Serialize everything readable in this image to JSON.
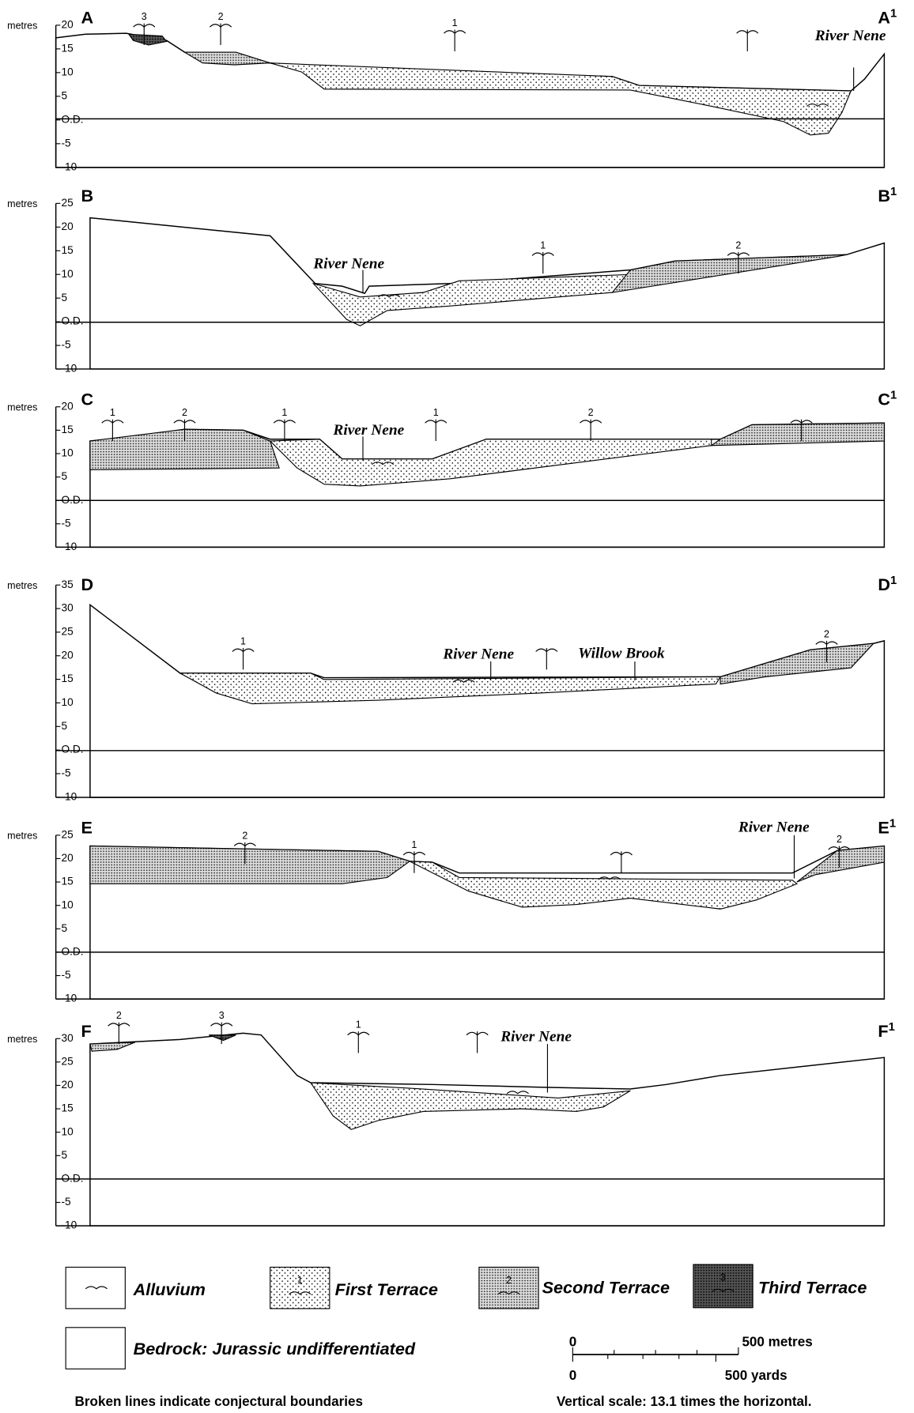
{
  "sections": [
    {
      "left": "A",
      "right": "A",
      "right_sup": "1",
      "axis_unit": "metres",
      "ticks": [
        "20",
        "15",
        "10",
        "5",
        "O.D.",
        "-5",
        "-10"
      ],
      "annotations": [
        "River Nene"
      ],
      "symbols": [
        "3",
        "2",
        "1"
      ]
    },
    {
      "left": "B",
      "right": "B",
      "right_sup": "1",
      "axis_unit": "metres",
      "ticks": [
        "25",
        "20",
        "15",
        "10",
        "5",
        "O.D.",
        "-5",
        "-10"
      ],
      "annotations": [
        "River Nene"
      ],
      "symbols": [
        "1",
        "2"
      ]
    },
    {
      "left": "C",
      "right": "C",
      "right_sup": "1",
      "axis_unit": "metres",
      "ticks": [
        "20",
        "15",
        "10",
        "5",
        "O.D.",
        "-5",
        "-10"
      ],
      "annotations": [
        "River Nene"
      ],
      "symbols": [
        "1",
        "2",
        "1",
        "1",
        "2"
      ]
    },
    {
      "left": "D",
      "right": "D",
      "right_sup": "1",
      "axis_unit": "metres",
      "ticks": [
        "35",
        "30",
        "25",
        "20",
        "15",
        "10",
        "5",
        "O.D.",
        "-5",
        "-10"
      ],
      "annotations": [
        "River Nene",
        "Willow Brook"
      ],
      "symbols": [
        "1",
        "2"
      ]
    },
    {
      "left": "E",
      "right": "E",
      "right_sup": "1",
      "axis_unit": "metres",
      "ticks": [
        "25",
        "20",
        "15",
        "10",
        "5",
        "O.D.",
        "-5",
        "-10"
      ],
      "annotations": [
        "River Nene"
      ],
      "symbols": [
        "2",
        "1",
        "2"
      ]
    },
    {
      "left": "F",
      "right": "F",
      "right_sup": "1",
      "axis_unit": "metres",
      "ticks": [
        "30",
        "25",
        "20",
        "15",
        "10",
        "5",
        "O.D.",
        "-5",
        "-10"
      ],
      "annotations": [
        "River Nene"
      ],
      "symbols": [
        "2",
        "3",
        "1"
      ]
    }
  ],
  "legend": {
    "items": [
      {
        "label": "Alluvium"
      },
      {
        "label": "First Terrace",
        "digit": "1"
      },
      {
        "label": "Second Terrace",
        "digit": "2"
      },
      {
        "label": "Third Terrace",
        "digit": "3"
      },
      {
        "label": "Bedrock: Jurassic undifferentiated"
      }
    ]
  },
  "scale": {
    "metres_zero": "0",
    "metres_label": "500 metres",
    "yards_zero": "0",
    "yards_label": "500 yards"
  },
  "notes": [
    "Broken lines indicate conjectural boundaries",
    "Vertical scale: 13.1 times the horizontal."
  ]
}
